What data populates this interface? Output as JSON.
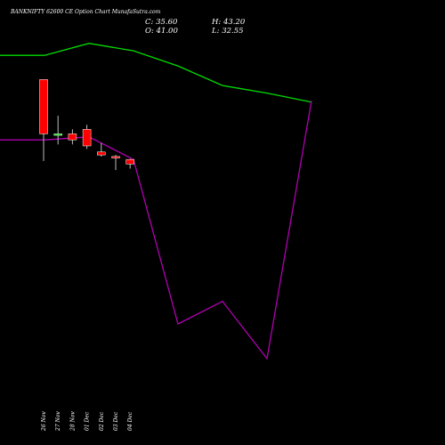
{
  "header": {
    "title": "BANKNIFTY 62600  CE Option  Chart MunafaSutra.com",
    "close": "C: 35.60",
    "high": "H: 43.20",
    "open": "O: 41.00",
    "low": "L: 32.55"
  },
  "chart_data": {
    "type": "candlestick",
    "categories": [
      "26 Nov",
      "27 Nov",
      "28 Nov",
      "01 Dec",
      "02 Dec",
      "03 Dec",
      "04 Dec"
    ],
    "candles": [
      {
        "date": "26 Nov",
        "open": 100,
        "high": 100,
        "low": 46,
        "close": 64
      },
      {
        "date": "27 Nov",
        "open": 63,
        "high": 76,
        "low": 57,
        "close": 64
      },
      {
        "date": "28 Nov",
        "open": 64,
        "high": 67,
        "low": 57,
        "close": 60
      },
      {
        "date": "01 Dec",
        "open": 67,
        "high": 70,
        "low": 54,
        "close": 56
      },
      {
        "date": "02 Dec",
        "open": 52,
        "high": 58,
        "low": 49,
        "close": 50
      },
      {
        "date": "03 Dec",
        "open": 49,
        "high": 50,
        "low": 40,
        "close": 48
      },
      {
        "date": "04 Dec",
        "open": 47,
        "high": 47.5,
        "low": 41,
        "close": 44
      }
    ],
    "lines": [
      {
        "color": "#00dd00",
        "points": [
          [
            0,
            116
          ],
          [
            1,
            116
          ],
          [
            2,
            124
          ],
          [
            3,
            119
          ],
          [
            4,
            109
          ],
          [
            5,
            96
          ],
          [
            6,
            91
          ],
          [
            7,
            85
          ]
        ]
      },
      {
        "color": "#b000b0",
        "points": [
          [
            0,
            60
          ],
          [
            1,
            60
          ],
          [
            2,
            62
          ],
          [
            3,
            47
          ],
          [
            4,
            -62
          ],
          [
            5,
            -47
          ],
          [
            6,
            -85
          ],
          [
            7,
            86
          ]
        ]
      }
    ],
    "ylim": [
      -95,
      135
    ],
    "up_color": "#00dd00",
    "down_color": "#ff0000"
  }
}
